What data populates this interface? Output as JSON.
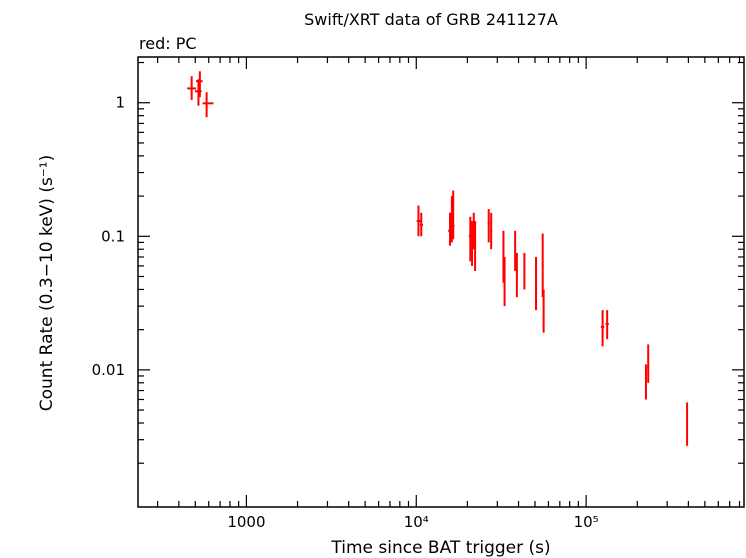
{
  "chart_data": {
    "type": "scatter",
    "title": "Swift/XRT data of GRB 241127A",
    "subtitle": "red: PC",
    "xlabel": "Time since BAT trigger (s)",
    "ylabel": "Count Rate (0.3−10 keV) (s⁻¹)",
    "xscale": "log",
    "yscale": "log",
    "xlim": [
      230,
      850000
    ],
    "ylim": [
      0.00094,
      2.2
    ],
    "x_ticks": [
      {
        "value": 1000,
        "label": "1000"
      },
      {
        "value": 10000,
        "label": "10⁴"
      },
      {
        "value": 100000,
        "label": "10⁵"
      }
    ],
    "y_ticks": [
      {
        "value": 1,
        "label": "1"
      },
      {
        "value": 0.1,
        "label": "0.1"
      },
      {
        "value": 0.01,
        "label": "0.01"
      }
    ],
    "series": [
      {
        "name": "PC",
        "color": "#ff0000",
        "points": [
          {
            "x": 476,
            "y": 1.28,
            "xerr": [
              448,
              505
            ],
            "yerr": [
              1.05,
              1.58
            ]
          },
          {
            "x": 532,
            "y": 1.45,
            "xerr": [
              505,
              552
            ],
            "yerr": [
              1.1,
              1.72
            ]
          },
          {
            "x": 522,
            "y": 1.22,
            "xerr": [
              498,
              545
            ],
            "yerr": [
              0.95,
              1.5
            ]
          },
          {
            "x": 583,
            "y": 0.99,
            "xerr": [
              552,
              640
            ],
            "yerr": [
              0.78,
              1.2
            ]
          },
          {
            "x": 10300,
            "y": 0.13,
            "xerr": [
              10050,
              10600
            ],
            "yerr": [
              0.1,
              0.17
            ]
          },
          {
            "x": 10700,
            "y": 0.122,
            "xerr": [
              10500,
              10950
            ],
            "yerr": [
              0.1,
              0.15
            ]
          },
          {
            "x": 15800,
            "y": 0.11,
            "xerr": [
              15400,
              16200
            ],
            "yerr": [
              0.085,
              0.15
            ]
          },
          {
            "x": 16200,
            "y": 0.14,
            "xerr": [
              15900,
              16500
            ],
            "yerr": [
              0.09,
              0.2
            ]
          },
          {
            "x": 16500,
            "y": 0.12,
            "xerr": [
              16200,
              16800
            ],
            "yerr": [
              0.095,
              0.22
            ]
          },
          {
            "x": 20800,
            "y": 0.1,
            "xerr": [
              20400,
              21200
            ],
            "yerr": [
              0.065,
              0.14
            ]
          },
          {
            "x": 21300,
            "y": 0.095,
            "xerr": [
              21000,
              21700
            ],
            "yerr": [
              0.06,
              0.13
            ]
          },
          {
            "x": 21800,
            "y": 0.12,
            "xerr": [
              21500,
              22100
            ],
            "yerr": [
              0.08,
              0.15
            ]
          },
          {
            "x": 22200,
            "y": 0.09,
            "xerr": [
              21900,
              22500
            ],
            "yerr": [
              0.055,
              0.13
            ]
          },
          {
            "x": 26700,
            "y": 0.125,
            "xerr": [
              26300,
              27100
            ],
            "yerr": [
              0.09,
              0.16
            ]
          },
          {
            "x": 27600,
            "y": 0.11,
            "xerr": [
              27200,
              28000
            ],
            "yerr": [
              0.08,
              0.15
            ]
          },
          {
            "x": 32600,
            "y": 0.07,
            "xerr": [
              32200,
              33000
            ],
            "yerr": [
              0.045,
              0.11
            ]
          },
          {
            "x": 33100,
            "y": 0.045,
            "xerr": [
              32700,
              33500
            ],
            "yerr": [
              0.03,
              0.07
            ]
          },
          {
            "x": 38200,
            "y": 0.08,
            "xerr": [
              37800,
              38600
            ],
            "yerr": [
              0.055,
              0.11
            ]
          },
          {
            "x": 39100,
            "y": 0.05,
            "xerr": [
              38700,
              39500
            ],
            "yerr": [
              0.035,
              0.075
            ]
          },
          {
            "x": 43300,
            "y": 0.055,
            "xerr": [
              42900,
              43700
            ],
            "yerr": [
              0.04,
              0.075
            ]
          },
          {
            "x": 50700,
            "y": 0.045,
            "xerr": [
              50200,
              51200
            ],
            "yerr": [
              0.028,
              0.07
            ]
          },
          {
            "x": 55500,
            "y": 0.06,
            "xerr": [
              54800,
              56200
            ],
            "yerr": [
              0.035,
              0.105
            ]
          },
          {
            "x": 56200,
            "y": 0.028,
            "xerr": [
              55600,
              56800
            ],
            "yerr": [
              0.019,
              0.04
            ]
          },
          {
            "x": 125000,
            "y": 0.021,
            "xerr": [
              122000,
              128000
            ],
            "yerr": [
              0.015,
              0.028
            ]
          },
          {
            "x": 133000,
            "y": 0.022,
            "xerr": [
              130000,
              136000
            ],
            "yerr": [
              0.017,
              0.028
            ]
          },
          {
            "x": 225000,
            "y": 0.0085,
            "xerr": [
              222000,
              228000
            ],
            "yerr": [
              0.006,
              0.011
            ]
          },
          {
            "x": 232000,
            "y": 0.0105,
            "xerr": [
              229000,
              235000
            ],
            "yerr": [
              0.008,
              0.0155
            ]
          },
          {
            "x": 393000,
            "y": 0.0041,
            "xerr": [
              390000,
              397000
            ],
            "yerr": [
              0.0027,
              0.0057
            ]
          }
        ]
      }
    ]
  }
}
